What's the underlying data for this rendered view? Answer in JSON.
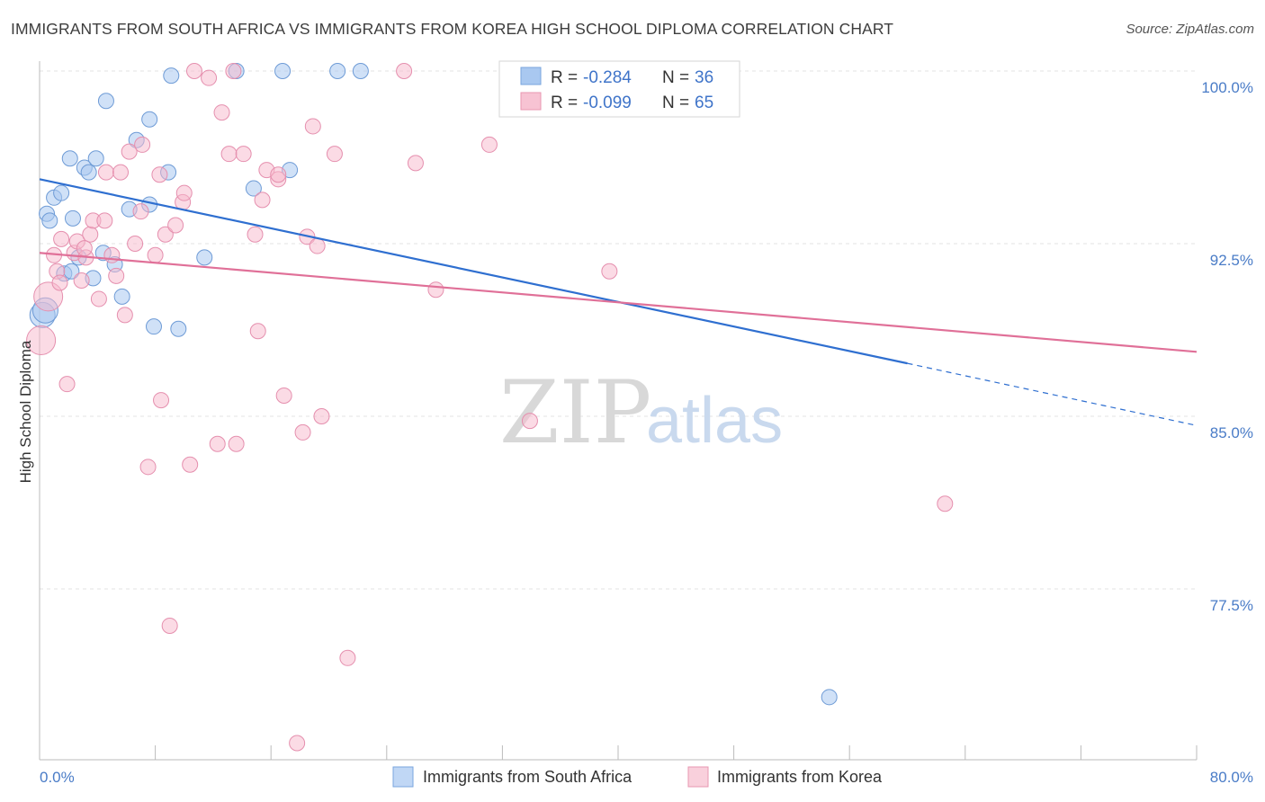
{
  "title": "IMMIGRANTS FROM SOUTH AFRICA VS IMMIGRANTS FROM KOREA HIGH SCHOOL DIPLOMA CORRELATION CHART",
  "source": "Source: ZipAtlas.com",
  "watermark": {
    "zip": "ZIP",
    "atlas": "atlas"
  },
  "legend": {
    "r_label": "R =",
    "n_label": "N =",
    "series": [
      {
        "r": "-0.284",
        "n": "36"
      },
      {
        "r": "-0.099",
        "n": "65"
      }
    ]
  },
  "colors": {
    "south_africa": "#a9c8f0",
    "south_africa_line": "#2f6fd0",
    "korea": "#f7b8cb",
    "korea_line": "#e07098"
  },
  "chart_data": {
    "type": "scatter",
    "ylabel": "High School Diploma",
    "xlim": [
      0,
      80
    ],
    "ylim": [
      71,
      101
    ],
    "yticks": [
      100,
      92.5,
      85,
      77.5
    ],
    "ytick_labels": [
      "100.0%",
      "92.5%",
      "85.0%",
      "77.5%"
    ],
    "xtick_labels": [
      "0.0%",
      "80.0%"
    ],
    "grid": true,
    "series": [
      {
        "name": "Immigrants from South Africa",
        "trend": {
          "x0": 0,
          "y0": 95.3,
          "x1": 60,
          "y1": 87.3,
          "dash_to_x": 80,
          "dash_to_y": 84.6
        },
        "points": [
          [
            0.2,
            89.4
          ],
          [
            0.5,
            93.8
          ],
          [
            0.7,
            93.5
          ],
          [
            1.0,
            94.5
          ],
          [
            1.5,
            94.7
          ],
          [
            1.7,
            91.2
          ],
          [
            2.1,
            96.2
          ],
          [
            2.3,
            93.6
          ],
          [
            2.7,
            91.9
          ],
          [
            3.1,
            95.8
          ],
          [
            3.4,
            95.6
          ],
          [
            3.7,
            91.0
          ],
          [
            3.9,
            96.2
          ],
          [
            4.4,
            92.1
          ],
          [
            4.6,
            98.7
          ],
          [
            5.2,
            91.6
          ],
          [
            5.7,
            90.2
          ],
          [
            6.2,
            94.0
          ],
          [
            6.7,
            97.0
          ],
          [
            7.6,
            94.2
          ],
          [
            7.6,
            97.9
          ],
          [
            7.9,
            88.9
          ],
          [
            8.9,
            95.6
          ],
          [
            9.1,
            99.8
          ],
          [
            9.6,
            88.8
          ],
          [
            11.4,
            91.9
          ],
          [
            13.6,
            100.0
          ],
          [
            14.8,
            94.9
          ],
          [
            16.8,
            100.0
          ],
          [
            17.3,
            95.7
          ],
          [
            20.6,
            100.0
          ],
          [
            22.2,
            100.0
          ],
          [
            33.8,
            100.0
          ],
          [
            54.6,
            72.8
          ],
          [
            2.2,
            91.3
          ],
          [
            0.4,
            89.6
          ]
        ]
      },
      {
        "name": "Immigrants from Korea",
        "trend": {
          "x0": 0,
          "y0": 92.1,
          "x1": 80,
          "y1": 87.8
        },
        "points": [
          [
            0.1,
            88.3
          ],
          [
            0.6,
            90.2
          ],
          [
            1.0,
            92.0
          ],
          [
            1.2,
            91.3
          ],
          [
            1.5,
            92.7
          ],
          [
            1.9,
            86.4
          ],
          [
            2.4,
            92.1
          ],
          [
            2.6,
            92.6
          ],
          [
            2.9,
            90.9
          ],
          [
            3.2,
            91.9
          ],
          [
            3.5,
            92.9
          ],
          [
            3.7,
            93.5
          ],
          [
            4.1,
            90.1
          ],
          [
            4.5,
            93.5
          ],
          [
            4.6,
            95.6
          ],
          [
            5.0,
            92.0
          ],
          [
            5.3,
            91.1
          ],
          [
            5.6,
            95.6
          ],
          [
            5.9,
            89.4
          ],
          [
            6.2,
            96.5
          ],
          [
            6.6,
            92.5
          ],
          [
            7.0,
            93.9
          ],
          [
            7.1,
            96.8
          ],
          [
            7.5,
            82.8
          ],
          [
            8.0,
            92.0
          ],
          [
            8.3,
            95.5
          ],
          [
            8.4,
            85.7
          ],
          [
            8.7,
            92.9
          ],
          [
            9.0,
            75.9
          ],
          [
            9.4,
            93.3
          ],
          [
            9.9,
            94.3
          ],
          [
            10.0,
            94.7
          ],
          [
            10.4,
            82.9
          ],
          [
            10.7,
            100.0
          ],
          [
            11.7,
            99.7
          ],
          [
            12.3,
            83.8
          ],
          [
            12.6,
            98.2
          ],
          [
            13.1,
            96.4
          ],
          [
            13.4,
            100.0
          ],
          [
            13.6,
            83.8
          ],
          [
            14.1,
            96.4
          ],
          [
            14.9,
            92.9
          ],
          [
            15.1,
            88.7
          ],
          [
            15.4,
            94.4
          ],
          [
            15.7,
            95.7
          ],
          [
            16.5,
            95.3
          ],
          [
            16.5,
            95.5
          ],
          [
            16.9,
            85.9
          ],
          [
            17.8,
            70.8
          ],
          [
            18.2,
            84.3
          ],
          [
            18.5,
            92.8
          ],
          [
            18.9,
            97.6
          ],
          [
            19.2,
            92.4
          ],
          [
            19.5,
            85.0
          ],
          [
            20.4,
            96.4
          ],
          [
            21.3,
            74.5
          ],
          [
            25.2,
            100.0
          ],
          [
            26.0,
            96.0
          ],
          [
            27.4,
            90.5
          ],
          [
            31.1,
            96.8
          ],
          [
            33.9,
            84.8
          ],
          [
            39.4,
            91.3
          ],
          [
            62.6,
            81.2
          ],
          [
            3.1,
            92.3
          ],
          [
            1.4,
            90.8
          ]
        ]
      }
    ]
  }
}
